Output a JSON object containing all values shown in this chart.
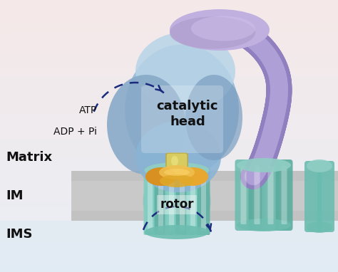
{
  "bg_top_color": "#f5e8e8",
  "bg_bottom_color": "#e8eef5",
  "membrane_color": "#bbbbbb",
  "membrane_light_color": "#cccccc",
  "membrane_bottom_color": "#d8e8f0",
  "catalytic_head_main": "#9bbcda",
  "catalytic_head_left": "#7aa0c8",
  "catalytic_head_bottom": "#8ab4d4",
  "catalytic_head_top": "#b8d0e8",
  "purple_cap_color": "#b0a0d0",
  "purple_arm_color": "#9888cc",
  "purple_arm_light": "#c0b0e0",
  "stalk_color": "#d8cc70",
  "stalk_edge_color": "#c0b050",
  "orange_ring_left": "#e0a030",
  "orange_ring_right": "#e8b840",
  "orange_ring_center": "#f0c050",
  "rotor_main": "#6dbdb0",
  "rotor_light": "#90cec4",
  "rotor_dark": "#50a898",
  "rotor_highlight": "#b0ddd8",
  "helix_main": "#6dbdb0",
  "helix_light": "#90cec4",
  "helix_tip": "#a0d8d0",
  "arrow_color": "#1a2a7c",
  "text_color": "#111111",
  "catalytic_label": "catalytic\nhead",
  "rotor_label": "rotor",
  "atp_label": "ATP",
  "adp_label": "ADP + Pi",
  "matrix_label": "Matrix",
  "im_label": "IM",
  "ims_label": "IMS"
}
